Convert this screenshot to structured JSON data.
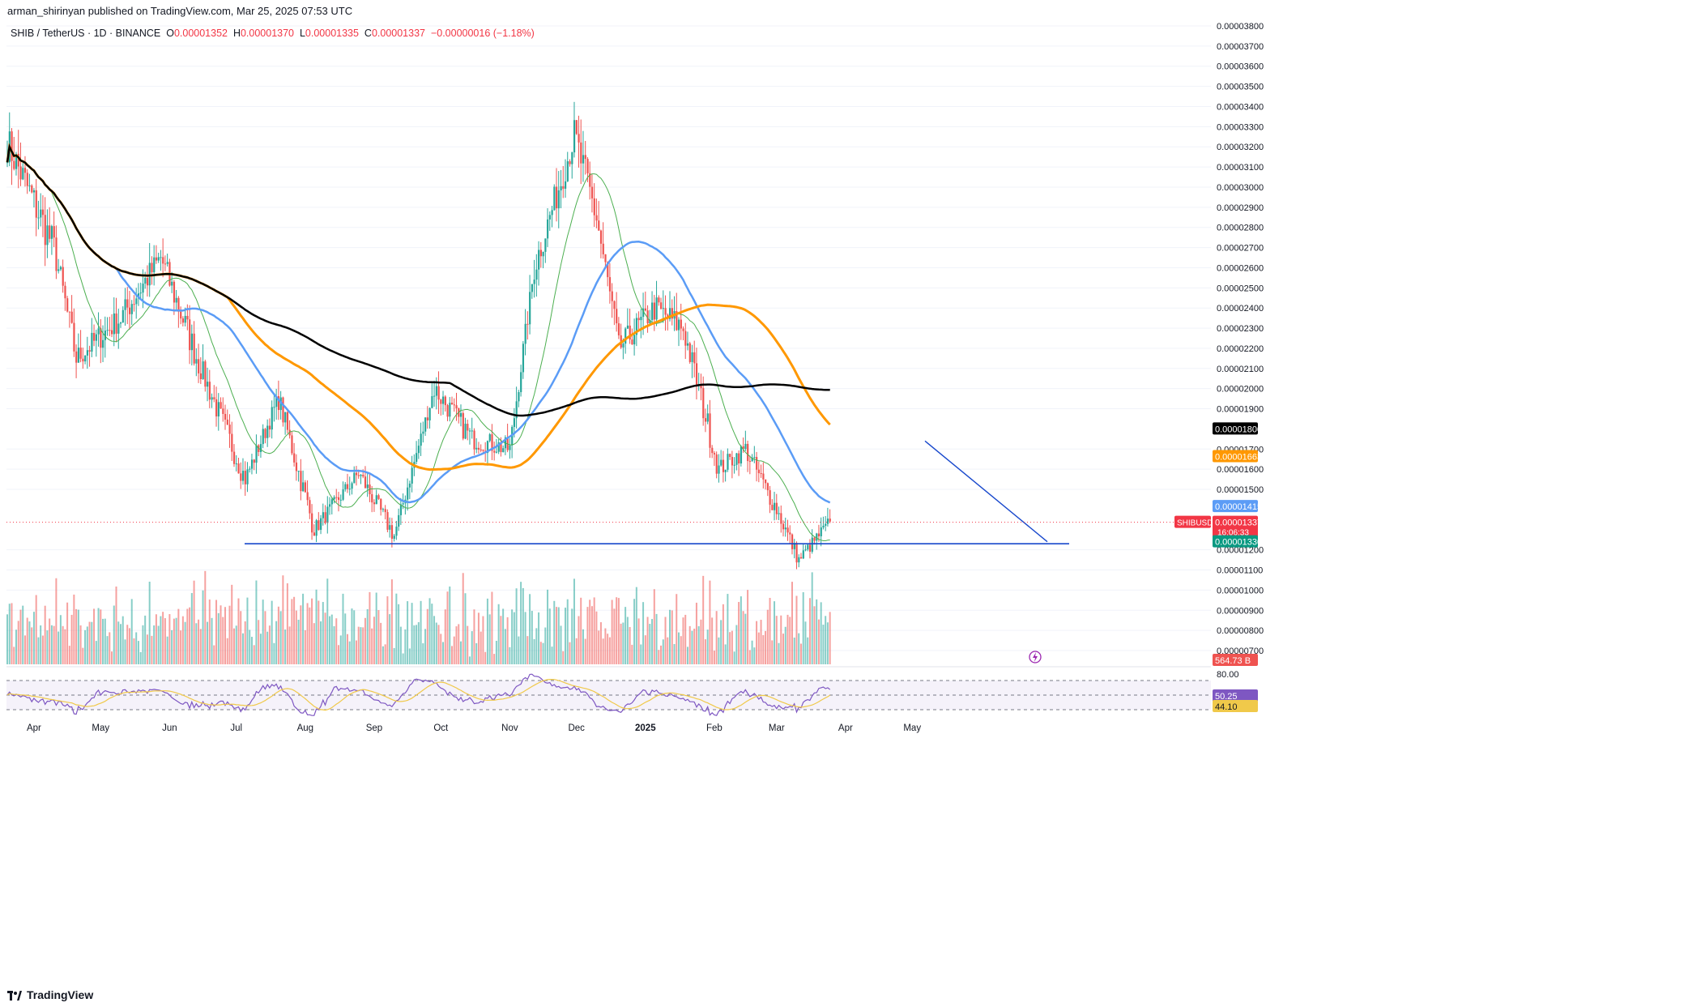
{
  "header": {
    "published": "arman_shirinyan published on TradingView.com, Mar 25, 2025 07:53 UTC"
  },
  "symbol": {
    "name": "SHIB / TetherUS · 1D · BINANCE",
    "open_label": "O",
    "open": "0.00001352",
    "high_label": "H",
    "high": "0.00001370",
    "low_label": "L",
    "low": "0.00001335",
    "close_label": "C",
    "close": "0.00001337",
    "change": "−0.00000016 (−1.18%)"
  },
  "footer": {
    "brand": "TradingView"
  },
  "colors": {
    "up": "#26a69a",
    "down": "#ef5350",
    "ma_blue": "#5b9cf6",
    "ma_orange": "#ff9800",
    "ma_black": "#000000",
    "ma_green": "#4caf50",
    "support": "#1848cc",
    "rsi": "#7e57c2",
    "rsi_ma": "#f0c94a"
  },
  "chart_data": {
    "type": "candlestick",
    "interval": "1D",
    "price_axis": {
      "ylim": [
        6.5e-06,
        3.8e-06
      ],
      "ticks": [
        "0.00003800",
        "0.00003700",
        "0.00003600",
        "0.00003500",
        "0.00003400",
        "0.00003300",
        "0.00003200",
        "0.00003100",
        "0.00003000",
        "0.00002900",
        "0.00002800",
        "0.00002700",
        "0.00002600",
        "0.00002500",
        "0.00002400",
        "0.00002300",
        "0.00002200",
        "0.00002100",
        "0.00002000",
        "0.00001900",
        "0.00001700",
        "0.00001600",
        "0.00001500",
        "0.00001200",
        "0.00001100",
        "0.00001000",
        "0.00000900",
        "0.00000800",
        "0.00000700"
      ]
    },
    "x_axis": {
      "months": [
        "Apr",
        "May",
        "Jun",
        "Jul",
        "Aug",
        "Sep",
        "Oct",
        "Nov",
        "Dec",
        "2025",
        "Feb",
        "Mar",
        "Apr",
        "May"
      ]
    },
    "price_badges": [
      {
        "label": "",
        "value": "0.00001800",
        "color": "#000000"
      },
      {
        "label": "",
        "value": "0.00001663",
        "color": "#ff9800"
      },
      {
        "label": "",
        "value": "0.00001415",
        "color": "#5b9cf6"
      },
      {
        "label": "SHIBUSDT",
        "value": "0.00001337",
        "sub": "16:06:33",
        "color": "#f23645"
      },
      {
        "label": "",
        "value": "0.00001330",
        "color": "#089981"
      }
    ],
    "volume_badge": "564.73 B",
    "rsi": {
      "ticks": [
        "80.00"
      ],
      "value": "50.25",
      "ma_value": "44.10",
      "levels": [
        70,
        50,
        30
      ]
    },
    "support_level": 1.23e-05,
    "key_price_path": [
      {
        "date": "2024-03-20",
        "close": 3.22e-05
      },
      {
        "date": "2024-04-10",
        "close": 2.7e-05
      },
      {
        "date": "2024-04-20",
        "close": 2.15e-05
      },
      {
        "date": "2024-05-10",
        "close": 2.35e-05
      },
      {
        "date": "2024-05-28",
        "close": 2.65e-05
      },
      {
        "date": "2024-06-15",
        "close": 2.1e-05
      },
      {
        "date": "2024-07-05",
        "close": 1.55e-05
      },
      {
        "date": "2024-07-20",
        "close": 1.95e-05
      },
      {
        "date": "2024-08-05",
        "close": 1.3e-05
      },
      {
        "date": "2024-08-25",
        "close": 1.58e-05
      },
      {
        "date": "2024-09-10",
        "close": 1.27e-05
      },
      {
        "date": "2024-09-28",
        "close": 2e-05
      },
      {
        "date": "2024-10-15",
        "close": 1.75e-05
      },
      {
        "date": "2024-11-01",
        "close": 1.7e-05
      },
      {
        "date": "2024-11-12",
        "close": 2.6e-05
      },
      {
        "date": "2024-11-30",
        "close": 3.25e-05
      },
      {
        "date": "2024-12-10",
        "close": 2.85e-05
      },
      {
        "date": "2024-12-20",
        "close": 2.2e-05
      },
      {
        "date": "2025-01-05",
        "close": 2.4e-05
      },
      {
        "date": "2025-01-18",
        "close": 2.3e-05
      },
      {
        "date": "2025-02-03",
        "close": 1.6e-05
      },
      {
        "date": "2025-02-15",
        "close": 1.7e-05
      },
      {
        "date": "2025-03-01",
        "close": 1.4e-05
      },
      {
        "date": "2025-03-11",
        "close": 1.15e-05
      },
      {
        "date": "2025-03-25",
        "close": 1.34e-05
      }
    ]
  }
}
